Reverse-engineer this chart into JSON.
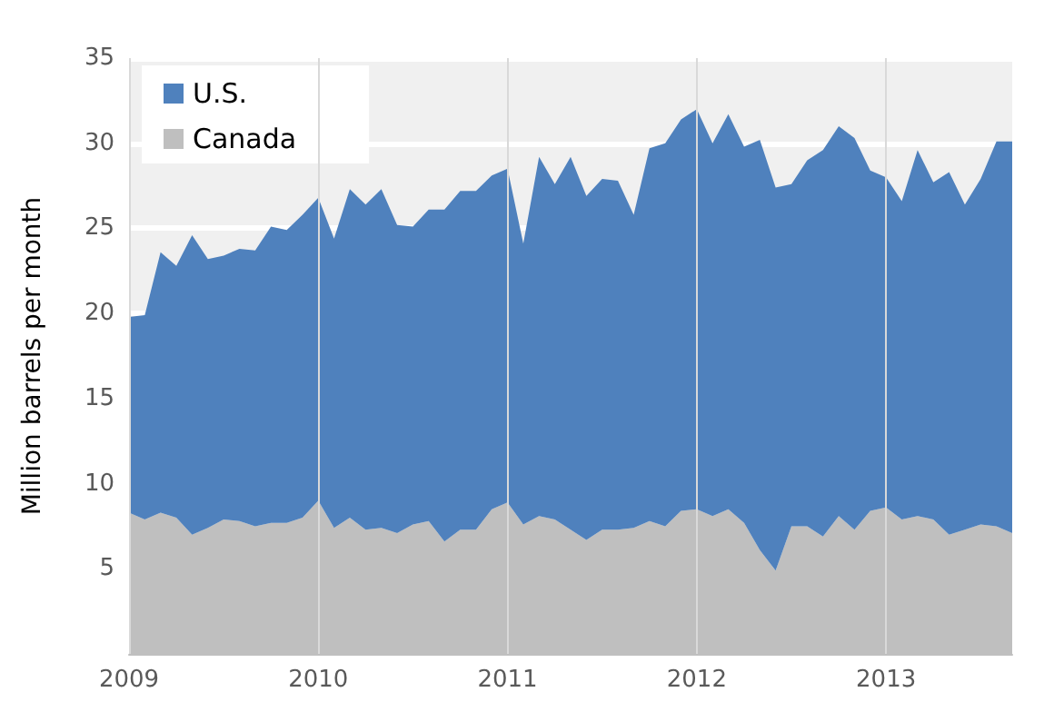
{
  "chart_data": {
    "type": "area",
    "stacked": true,
    "ylabel": "Million barrels per month",
    "x": [
      "2009-01",
      "2009-02",
      "2009-03",
      "2009-04",
      "2009-05",
      "2009-06",
      "2009-07",
      "2009-08",
      "2009-09",
      "2009-10",
      "2009-11",
      "2009-12",
      "2010-01",
      "2010-02",
      "2010-03",
      "2010-04",
      "2010-05",
      "2010-06",
      "2010-07",
      "2010-08",
      "2010-09",
      "2010-10",
      "2010-11",
      "2010-12",
      "2011-01",
      "2011-02",
      "2011-03",
      "2011-04",
      "2011-05",
      "2011-06",
      "2011-07",
      "2011-08",
      "2011-09",
      "2011-10",
      "2011-11",
      "2011-12",
      "2012-01",
      "2012-02",
      "2012-03",
      "2012-04",
      "2012-05",
      "2012-06",
      "2012-07",
      "2012-08",
      "2012-09",
      "2012-10",
      "2012-11",
      "2012-12",
      "2013-01",
      "2013-02",
      "2013-03",
      "2013-04",
      "2013-05",
      "2013-06",
      "2013-07",
      "2013-08",
      "2013-09"
    ],
    "series": [
      {
        "name": "Canada",
        "color": "#bfbfbf",
        "values": [
          8.3,
          7.9,
          8.3,
          8.0,
          7.0,
          7.4,
          7.9,
          7.8,
          7.5,
          7.7,
          7.7,
          8.0,
          9.0,
          7.4,
          8.0,
          7.3,
          7.4,
          7.1,
          7.6,
          7.8,
          6.6,
          7.3,
          7.3,
          8.5,
          8.9,
          7.6,
          8.1,
          7.9,
          7.3,
          6.7,
          7.3,
          7.3,
          7.4,
          7.8,
          7.5,
          8.4,
          8.5,
          8.1,
          8.5,
          7.7,
          6.1,
          4.9,
          7.5,
          7.5,
          6.9,
          8.1,
          7.3,
          8.4,
          8.6,
          7.9,
          8.1,
          7.9,
          7.0,
          7.3,
          7.6,
          7.5,
          7.1
        ]
      },
      {
        "name": "U.S.",
        "color": "#4f81bd",
        "values": [
          11.5,
          12.0,
          15.3,
          14.8,
          17.6,
          15.8,
          15.5,
          16.0,
          16.2,
          17.4,
          17.2,
          17.8,
          17.8,
          17.0,
          19.3,
          19.1,
          19.9,
          18.1,
          17.5,
          18.3,
          19.5,
          19.9,
          19.9,
          19.6,
          19.6,
          16.5,
          21.1,
          19.7,
          21.9,
          20.2,
          20.6,
          20.5,
          18.4,
          21.9,
          22.5,
          23.0,
          23.5,
          21.9,
          23.2,
          22.1,
          24.1,
          22.5,
          20.1,
          21.5,
          22.7,
          22.9,
          23.0,
          20.0,
          19.4,
          18.7,
          21.5,
          19.8,
          21.3,
          19.1,
          20.3,
          22.6,
          23.0
        ]
      }
    ],
    "xlim": [
      "2009-01",
      "2013-09"
    ],
    "xticks": [
      "2009",
      "2010",
      "2011",
      "2012",
      "2013"
    ],
    "ylim": [
      0,
      35
    ],
    "yticks": [
      5,
      10,
      15,
      20,
      25,
      30,
      35
    ],
    "grid": true,
    "legend": "top left",
    "marker": "none"
  }
}
